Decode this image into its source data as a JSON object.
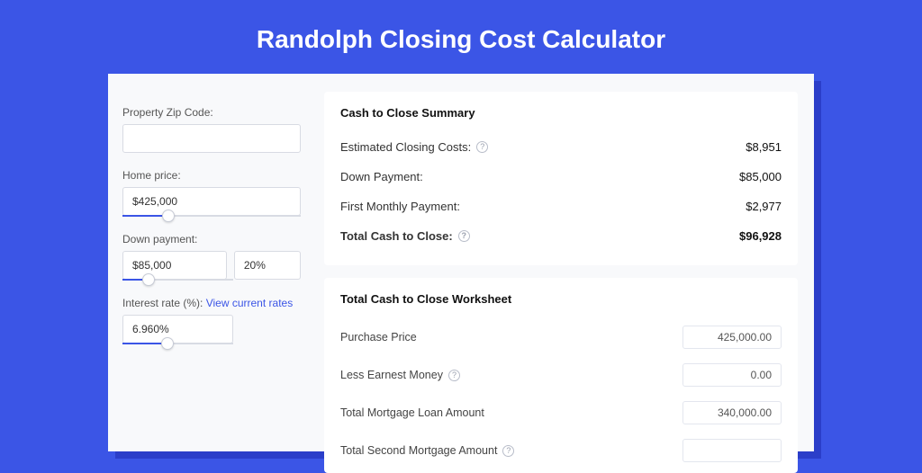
{
  "page": {
    "title": "Randolph Closing Cost Calculator"
  },
  "colors": {
    "brand": "#3b55e6",
    "shadow": "#2b3ec9",
    "panel_bg": "#f8f9fb",
    "card_bg": "#ffffff",
    "border": "#d8dbe3",
    "text": "#333333"
  },
  "left": {
    "zip": {
      "label": "Property Zip Code:",
      "value": ""
    },
    "home_price": {
      "label": "Home price:",
      "value": "$425,000",
      "slider_percent": 22
    },
    "down_payment": {
      "label": "Down payment:",
      "amount": "$85,000",
      "percent": "20%",
      "slider_percent": 18
    },
    "interest": {
      "label": "Interest rate (%):",
      "link_text": "View current rates",
      "value": "6.960%",
      "slider_percent": 35
    }
  },
  "summary": {
    "title": "Cash to Close Summary",
    "rows": [
      {
        "label": "Estimated Closing Costs:",
        "help": true,
        "value": "$8,951",
        "bold": false
      },
      {
        "label": "Down Payment:",
        "help": false,
        "value": "$85,000",
        "bold": false
      },
      {
        "label": "First Monthly Payment:",
        "help": false,
        "value": "$2,977",
        "bold": false
      },
      {
        "label": "Total Cash to Close:",
        "help": true,
        "value": "$96,928",
        "bold": true
      }
    ]
  },
  "worksheet": {
    "title": "Total Cash to Close Worksheet",
    "rows": [
      {
        "label": "Purchase Price",
        "help": false,
        "value": "425,000.00"
      },
      {
        "label": "Less Earnest Money",
        "help": true,
        "value": "0.00"
      },
      {
        "label": "Total Mortgage Loan Amount",
        "help": false,
        "value": "340,000.00"
      },
      {
        "label": "Total Second Mortgage Amount",
        "help": true,
        "value": ""
      }
    ]
  }
}
